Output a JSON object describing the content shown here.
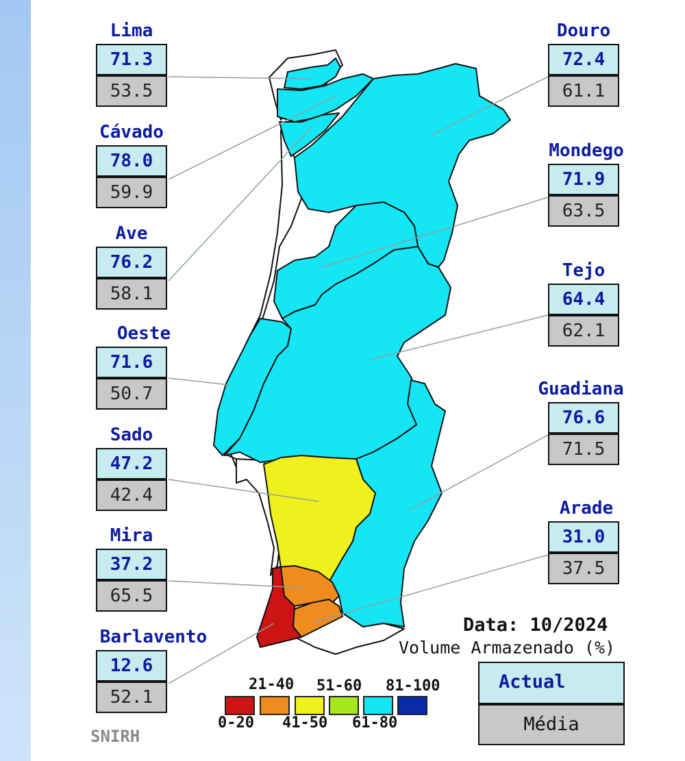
{
  "map": {
    "date_label": "Data: 10/2024",
    "volume_label": "Volume Armazenado (%)",
    "key": {
      "current": "Actual",
      "average": "Média"
    },
    "source": "SNIRH",
    "legend": {
      "ranges": [
        {
          "label": "0-20",
          "color": "#cc1414"
        },
        {
          "label": "21-40",
          "color": "#f08c1e"
        },
        {
          "label": "41-50",
          "color": "#f0f01e"
        },
        {
          "label": "51-60",
          "color": "#a8e61e"
        },
        {
          "label": "61-80",
          "color": "#14e6f5"
        },
        {
          "label": "81-100",
          "color": "#0a2ba8"
        }
      ]
    },
    "basins": [
      {
        "name": "Lima",
        "current": "71.3",
        "average": "53.5",
        "range": "61-80"
      },
      {
        "name": "Cávado",
        "current": "78.0",
        "average": "59.9",
        "range": "61-80"
      },
      {
        "name": "Ave",
        "current": "76.2",
        "average": "58.1",
        "range": "61-80"
      },
      {
        "name": "Oeste",
        "current": "71.6",
        "average": "50.7",
        "range": "61-80"
      },
      {
        "name": "Sado",
        "current": "47.2",
        "average": "42.4",
        "range": "41-50"
      },
      {
        "name": "Mira",
        "current": "37.2",
        "average": "65.5",
        "range": "21-40"
      },
      {
        "name": "Barlavento",
        "current": "12.6",
        "average": "52.1",
        "range": "0-20"
      },
      {
        "name": "Douro",
        "current": "72.4",
        "average": "61.1",
        "range": "61-80"
      },
      {
        "name": "Mondego",
        "current": "71.9",
        "average": "63.5",
        "range": "61-80"
      },
      {
        "name": "Tejo",
        "current": "64.4",
        "average": "62.1",
        "range": "61-80"
      },
      {
        "name": "Guadiana",
        "current": "76.6",
        "average": "71.5",
        "range": "61-80"
      },
      {
        "name": "Arade",
        "current": "31.0",
        "average": "37.5",
        "range": "21-40"
      }
    ]
  }
}
